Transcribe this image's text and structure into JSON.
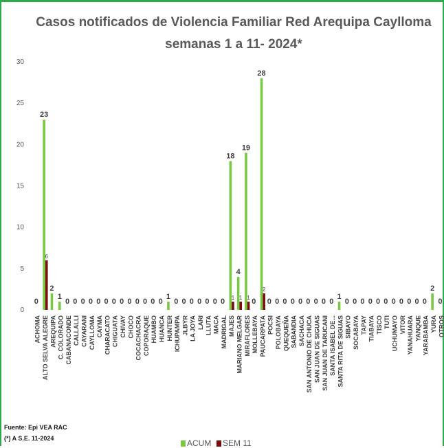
{
  "chart_data": {
    "type": "bar",
    "title": [
      "Casos notificados  de Violencia Familiar Red Arequipa Caylloma",
      "semanas 1 a 11- 2024*"
    ],
    "ylim": [
      0,
      30
    ],
    "yticks": [
      0,
      5,
      10,
      15,
      20,
      25,
      30
    ],
    "grid": false,
    "legend_position": "bottom",
    "categories": [
      "ACHOMA",
      "ALTO SELVA ALEGRE",
      "AREQUIPA",
      "C. COLORADO",
      "CABANACONDE",
      "CALLALLI",
      "CAYARANI",
      "CAYLLOMA",
      "CAYMA",
      "CHARACATO",
      "CHIGUATA",
      "CHIVAY",
      "CHOCO",
      "COCACHACRA",
      "COPORAQUE",
      "HUAMBO",
      "HUANCA",
      "HUNTER",
      "ICHUPAMPA",
      "JLBYR",
      "LA JOYA",
      "LARI",
      "LLUTA",
      "MACA",
      "MADRIGAL",
      "MAJES",
      "MARIANO MELGAR",
      "MIRAFLORES",
      "MOLLEBAYA",
      "PAUCARPATA",
      "POCSI",
      "POLOBAYA",
      "QUEQUEÑA",
      "SABANDIA",
      "SACHACA",
      "SAN ANTONIO DE CHUCA",
      "SAN JUAN DE SIGUAS",
      "SAN JUAN DE TARUCANI",
      "SANTA ISABEL DE...",
      "SANTA RITA DE SIGUAS",
      "SIBAYO",
      "SOCABAYA",
      "TAPAY",
      "TIABAYA",
      "TISCO",
      "TUTI",
      "UCHUMAYO",
      "VITOR",
      "YANAHUARA",
      "YANQUE",
      "YARABAMBA",
      "YURA",
      "OTROS"
    ],
    "series": [
      {
        "name": "ACUM",
        "color": "#7ac943",
        "values": [
          0,
          23,
          2,
          1,
          0,
          0,
          0,
          0,
          0,
          0,
          0,
          0,
          0,
          0,
          0,
          0,
          0,
          1,
          0,
          0,
          0,
          0,
          0,
          0,
          0,
          18,
          4,
          19,
          0,
          28,
          0,
          0,
          0,
          0,
          0,
          0,
          0,
          0,
          0,
          1,
          0,
          0,
          0,
          0,
          0,
          0,
          0,
          0,
          0,
          0,
          0,
          2,
          0
        ]
      },
      {
        "name": "SEM 11",
        "color": "#7b0c0c",
        "values": [
          null,
          6,
          null,
          null,
          null,
          null,
          null,
          null,
          null,
          null,
          null,
          null,
          null,
          null,
          null,
          null,
          null,
          null,
          null,
          null,
          null,
          null,
          null,
          null,
          null,
          1,
          1,
          1,
          null,
          2,
          null,
          null,
          null,
          null,
          null,
          null,
          null,
          null,
          null,
          null,
          null,
          null,
          null,
          null,
          null,
          null,
          null,
          null,
          null,
          null,
          null,
          null,
          null
        ]
      }
    ]
  },
  "footer": {
    "source": "Fuente: Epi VEA RAC",
    "note": "(*) A S.E. 11-2024"
  },
  "legend": {
    "acum_label": "ACUM",
    "sem_label": "SEM 11"
  }
}
